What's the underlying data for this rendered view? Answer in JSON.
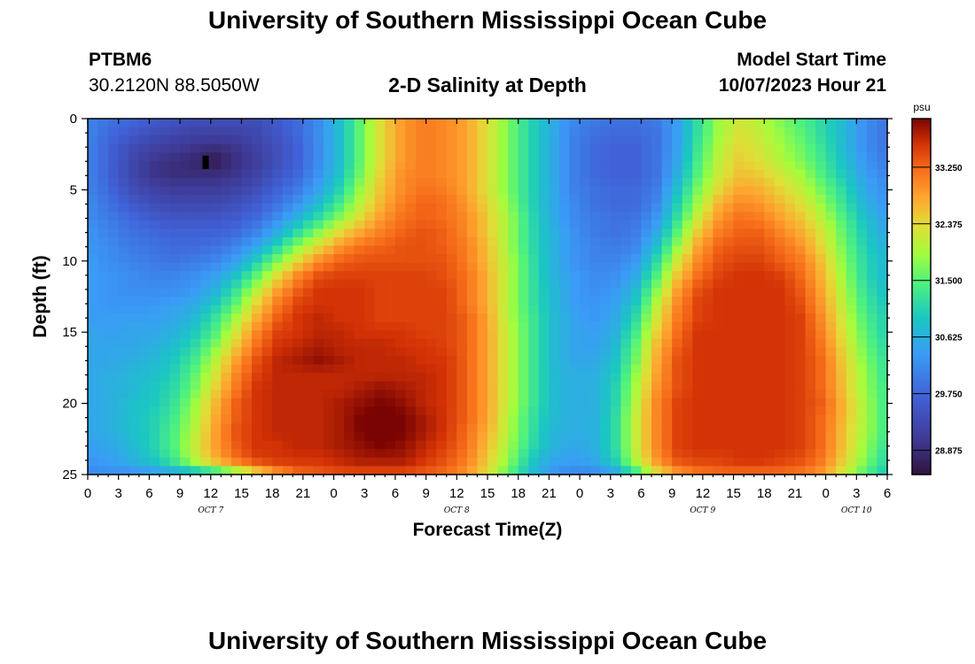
{
  "header": {
    "title": "University of Southern Mississippi Ocean Cube",
    "station_id": "PTBM6",
    "coordinates": "30.2120N  88.5050W",
    "chart_title": "2-D Salinity at Depth",
    "model_start_label": "Model Start Time",
    "model_start_value": "10/07/2023 Hour 21"
  },
  "footer": {
    "title": "University of Southern Mississippi Ocean Cube"
  },
  "chart_data": {
    "type": "heatmap",
    "title": "2-D Salinity at Depth",
    "xlabel": "Forecast Time(Z)",
    "ylabel": "Depth (ft)",
    "x_unit": "hours from 10/07/2023 00Z",
    "x_range": [
      0,
      78
    ],
    "y_range": [
      0,
      25
    ],
    "x_tick_labels": [
      "0",
      "3",
      "6",
      "9",
      "12",
      "15",
      "18",
      "21",
      "0",
      "3",
      "6",
      "9",
      "12",
      "15",
      "18",
      "21",
      "0",
      "3",
      "6",
      "9",
      "12",
      "15",
      "18",
      "21",
      "0",
      "3",
      "6"
    ],
    "day_labels": [
      {
        "label": "OCT 7",
        "hour": 12
      },
      {
        "label": "OCT 8",
        "hour": 36
      },
      {
        "label": "OCT 9",
        "hour": 60
      },
      {
        "label": "OCT 10",
        "hour": 75
      }
    ],
    "y_ticks": [
      0,
      5,
      10,
      15,
      20,
      25
    ],
    "colorbar": {
      "unit": "psu",
      "min": 28.5,
      "max": 34.0,
      "ticks": [
        "33.250",
        "32.375",
        "31.500",
        "30.625",
        "29.750",
        "28.875"
      ]
    },
    "rows": 26,
    "cols": 39,
    "values": [
      [
        30.1,
        29.9,
        29.8,
        29.6,
        29.5,
        29.4,
        29.4,
        29.4,
        29.4,
        29.6,
        29.8,
        30.2,
        30.8,
        31.6,
        32.4,
        32.9,
        33.1,
        33.0,
        32.8,
        32.3,
        31.7,
        31.1,
        30.6,
        30.2,
        30.0,
        29.9,
        29.9,
        30.0,
        30.4,
        31.2,
        31.9,
        32.2,
        32.0,
        31.7,
        31.4,
        31.1,
        30.7,
        30.2,
        29.9
      ],
      [
        30.1,
        29.8,
        29.6,
        29.4,
        29.3,
        29.2,
        29.2,
        29.2,
        29.3,
        29.5,
        29.8,
        30.2,
        30.8,
        31.6,
        32.4,
        32.9,
        33.1,
        33.0,
        32.8,
        32.3,
        31.7,
        31.1,
        30.6,
        30.1,
        29.9,
        29.8,
        29.8,
        29.9,
        30.4,
        31.2,
        31.9,
        32.3,
        32.1,
        31.8,
        31.5,
        31.1,
        30.7,
        30.2,
        29.9
      ],
      [
        30.1,
        29.7,
        29.4,
        29.2,
        29.1,
        29.0,
        28.9,
        29.0,
        29.2,
        29.4,
        29.7,
        30.2,
        30.8,
        31.6,
        32.4,
        32.9,
        33.1,
        33.0,
        32.8,
        32.3,
        31.7,
        31.1,
        30.6,
        30.1,
        29.8,
        29.7,
        29.7,
        29.9,
        30.4,
        31.3,
        32.0,
        32.4,
        32.2,
        31.9,
        31.6,
        31.2,
        30.7,
        30.2,
        29.9
      ],
      [
        30.1,
        29.7,
        29.3,
        29.0,
        28.9,
        28.8,
        28.6,
        28.9,
        29.1,
        29.4,
        29.7,
        30.2,
        30.8,
        31.6,
        32.4,
        32.9,
        33.1,
        33.0,
        32.8,
        32.3,
        31.7,
        31.1,
        30.6,
        30.1,
        29.8,
        29.7,
        29.7,
        29.9,
        30.5,
        31.4,
        32.1,
        32.5,
        32.3,
        32.0,
        31.7,
        31.3,
        30.8,
        30.3,
        30.0
      ],
      [
        30.1,
        29.7,
        29.3,
        29.0,
        28.9,
        28.9,
        28.9,
        29.0,
        29.2,
        29.5,
        29.8,
        30.3,
        30.9,
        31.7,
        32.5,
        33.0,
        33.1,
        33.0,
        32.8,
        32.3,
        31.7,
        31.1,
        30.6,
        30.1,
        29.8,
        29.7,
        29.7,
        29.9,
        30.6,
        31.5,
        32.2,
        32.6,
        32.5,
        32.2,
        31.9,
        31.4,
        30.9,
        30.4,
        30.1
      ],
      [
        30.1,
        29.8,
        29.4,
        29.2,
        29.1,
        29.1,
        29.1,
        29.2,
        29.4,
        29.7,
        30.0,
        30.5,
        31.1,
        31.9,
        32.6,
        33.0,
        33.2,
        33.1,
        32.8,
        32.3,
        31.7,
        31.1,
        30.6,
        30.1,
        29.9,
        29.8,
        29.8,
        30.0,
        30.8,
        31.7,
        32.4,
        32.8,
        32.7,
        32.4,
        32.1,
        31.6,
        31.1,
        30.5,
        30.2
      ],
      [
        30.2,
        29.9,
        29.6,
        29.4,
        29.3,
        29.3,
        29.3,
        29.4,
        29.6,
        29.9,
        30.3,
        30.8,
        31.4,
        32.1,
        32.7,
        33.1,
        33.3,
        33.2,
        32.9,
        32.4,
        31.8,
        31.1,
        30.6,
        30.2,
        29.9,
        29.8,
        29.8,
        30.1,
        31.0,
        31.9,
        32.7,
        33.0,
        32.9,
        32.6,
        32.3,
        31.8,
        31.2,
        30.6,
        30.3
      ],
      [
        30.2,
        30.0,
        29.8,
        29.6,
        29.5,
        29.5,
        29.5,
        29.6,
        29.8,
        30.2,
        30.7,
        31.2,
        31.8,
        32.4,
        32.9,
        33.2,
        33.3,
        33.2,
        33.0,
        32.5,
        31.9,
        31.2,
        30.6,
        30.2,
        30.0,
        29.9,
        29.9,
        30.3,
        31.2,
        32.2,
        32.9,
        33.2,
        33.1,
        32.8,
        32.5,
        32.0,
        31.4,
        30.8,
        30.4
      ],
      [
        30.3,
        30.1,
        29.9,
        29.8,
        29.7,
        29.7,
        29.7,
        29.8,
        30.1,
        30.6,
        31.2,
        31.8,
        32.4,
        32.8,
        33.1,
        33.3,
        33.4,
        33.3,
        33.0,
        32.5,
        31.9,
        31.2,
        30.7,
        30.3,
        30.0,
        29.9,
        30.0,
        30.5,
        31.5,
        32.5,
        33.1,
        33.3,
        33.3,
        33.0,
        32.7,
        32.2,
        31.5,
        30.9,
        30.5
      ],
      [
        30.3,
        30.2,
        30.0,
        29.9,
        29.8,
        29.8,
        29.9,
        30.1,
        30.5,
        31.1,
        31.8,
        32.4,
        32.9,
        33.2,
        33.3,
        33.4,
        33.4,
        33.3,
        33.1,
        32.6,
        31.9,
        31.2,
        30.7,
        30.3,
        30.1,
        30.0,
        30.1,
        30.8,
        31.8,
        32.8,
        33.3,
        33.4,
        33.4,
        33.2,
        32.9,
        32.3,
        31.6,
        31.0,
        30.6
      ],
      [
        30.4,
        30.2,
        30.1,
        30.0,
        29.9,
        30.0,
        30.1,
        30.4,
        31.0,
        31.7,
        32.4,
        33.0,
        33.3,
        33.4,
        33.4,
        33.4,
        33.4,
        33.4,
        33.1,
        32.6,
        32.0,
        31.3,
        30.7,
        30.3,
        30.1,
        30.1,
        30.3,
        31.1,
        32.2,
        33.0,
        33.4,
        33.5,
        33.5,
        33.3,
        33.1,
        32.5,
        31.7,
        31.1,
        30.7
      ],
      [
        30.4,
        30.3,
        30.2,
        30.1,
        30.1,
        30.2,
        30.4,
        30.8,
        31.5,
        32.3,
        33.0,
        33.4,
        33.5,
        33.5,
        33.5,
        33.5,
        33.5,
        33.4,
        33.2,
        32.7,
        32.0,
        31.3,
        30.7,
        30.4,
        30.2,
        30.2,
        30.5,
        31.4,
        32.5,
        33.2,
        33.5,
        33.6,
        33.6,
        33.5,
        33.2,
        32.6,
        31.8,
        31.1,
        30.7
      ],
      [
        30.4,
        30.3,
        30.2,
        30.2,
        30.2,
        30.3,
        30.6,
        31.2,
        32.0,
        32.8,
        33.3,
        33.6,
        33.6,
        33.6,
        33.5,
        33.5,
        33.5,
        33.5,
        33.2,
        32.7,
        32.0,
        31.3,
        30.8,
        30.4,
        30.2,
        30.3,
        30.7,
        31.7,
        32.8,
        33.4,
        33.6,
        33.6,
        33.6,
        33.6,
        33.3,
        32.7,
        31.9,
        31.2,
        30.8
      ],
      [
        30.4,
        30.3,
        30.3,
        30.3,
        30.4,
        30.5,
        30.9,
        31.5,
        32.4,
        33.1,
        33.5,
        33.6,
        33.6,
        33.6,
        33.5,
        33.5,
        33.5,
        33.5,
        33.2,
        32.7,
        32.0,
        31.3,
        30.8,
        30.4,
        30.3,
        30.4,
        30.9,
        32.0,
        33.0,
        33.5,
        33.6,
        33.6,
        33.6,
        33.6,
        33.4,
        32.8,
        32.0,
        31.3,
        30.9
      ],
      [
        30.4,
        30.4,
        30.4,
        30.4,
        30.5,
        30.7,
        31.2,
        31.9,
        32.7,
        33.3,
        33.6,
        33.7,
        33.6,
        33.6,
        33.5,
        33.5,
        33.5,
        33.5,
        33.3,
        32.8,
        32.0,
        31.4,
        30.8,
        30.5,
        30.3,
        30.5,
        31.1,
        32.2,
        33.1,
        33.5,
        33.6,
        33.6,
        33.6,
        33.6,
        33.5,
        32.9,
        32.1,
        31.4,
        31.0
      ],
      [
        30.5,
        30.4,
        30.5,
        30.5,
        30.6,
        30.9,
        31.4,
        32.2,
        33.0,
        33.5,
        33.6,
        33.7,
        33.7,
        33.6,
        33.6,
        33.6,
        33.5,
        33.5,
        33.3,
        32.8,
        32.1,
        31.4,
        30.8,
        30.5,
        30.4,
        30.6,
        31.3,
        32.4,
        33.2,
        33.6,
        33.6,
        33.6,
        33.6,
        33.6,
        33.5,
        33.0,
        32.2,
        31.5,
        31.0
      ],
      [
        30.5,
        30.5,
        30.5,
        30.6,
        30.8,
        31.1,
        31.7,
        32.5,
        33.2,
        33.6,
        33.7,
        33.8,
        33.7,
        33.7,
        33.7,
        33.6,
        33.6,
        33.5,
        33.3,
        32.8,
        32.1,
        31.4,
        30.8,
        30.5,
        30.4,
        30.7,
        31.5,
        32.6,
        33.3,
        33.6,
        33.6,
        33.6,
        33.6,
        33.6,
        33.5,
        33.1,
        32.3,
        31.6,
        31.1
      ],
      [
        30.5,
        30.5,
        30.6,
        30.7,
        30.9,
        31.3,
        32.0,
        32.8,
        33.4,
        33.7,
        33.8,
        33.9,
        33.8,
        33.7,
        33.7,
        33.7,
        33.6,
        33.6,
        33.3,
        32.8,
        32.1,
        31.4,
        30.8,
        30.5,
        30.5,
        30.8,
        31.6,
        32.7,
        33.4,
        33.6,
        33.6,
        33.6,
        33.6,
        33.6,
        33.5,
        33.2,
        32.4,
        31.7,
        31.2
      ],
      [
        30.5,
        30.6,
        30.7,
        30.8,
        31.0,
        31.5,
        32.2,
        33.0,
        33.5,
        33.7,
        33.7,
        33.7,
        33.7,
        33.7,
        33.7,
        33.7,
        33.7,
        33.6,
        33.3,
        32.8,
        32.1,
        31.4,
        30.8,
        30.6,
        30.6,
        30.9,
        31.8,
        32.8,
        33.4,
        33.6,
        33.6,
        33.6,
        33.6,
        33.6,
        33.5,
        33.2,
        32.5,
        31.8,
        31.2
      ],
      [
        30.5,
        30.6,
        30.7,
        30.9,
        31.1,
        31.6,
        32.4,
        33.1,
        33.6,
        33.7,
        33.7,
        33.7,
        33.7,
        33.8,
        33.9,
        33.8,
        33.7,
        33.6,
        33.3,
        32.8,
        32.1,
        31.4,
        30.8,
        30.6,
        30.6,
        31.0,
        31.9,
        32.9,
        33.4,
        33.6,
        33.6,
        33.6,
        33.6,
        33.6,
        33.5,
        33.2,
        32.5,
        31.8,
        31.3
      ],
      [
        30.5,
        30.6,
        30.8,
        30.9,
        31.2,
        31.8,
        32.6,
        33.3,
        33.6,
        33.7,
        33.7,
        33.7,
        33.8,
        33.9,
        34.0,
        33.9,
        33.7,
        33.6,
        33.3,
        32.8,
        32.1,
        31.4,
        30.8,
        30.6,
        30.6,
        31.0,
        32.0,
        33.0,
        33.5,
        33.6,
        33.6,
        33.6,
        33.6,
        33.6,
        33.5,
        33.3,
        32.6,
        31.9,
        31.3
      ],
      [
        30.5,
        30.6,
        30.8,
        31.0,
        31.3,
        31.9,
        32.7,
        33.3,
        33.6,
        33.7,
        33.7,
        33.7,
        33.8,
        34.0,
        34.1,
        34.0,
        33.8,
        33.6,
        33.3,
        32.8,
        32.0,
        31.3,
        30.8,
        30.6,
        30.6,
        31.1,
        32.1,
        33.0,
        33.5,
        33.6,
        33.6,
        33.6,
        33.6,
        33.6,
        33.5,
        33.2,
        32.6,
        31.9,
        31.3
      ],
      [
        30.5,
        30.6,
        30.8,
        31.0,
        31.4,
        32.0,
        32.8,
        33.4,
        33.6,
        33.7,
        33.7,
        33.7,
        33.8,
        34.0,
        34.1,
        34.0,
        33.8,
        33.6,
        33.2,
        32.7,
        32.0,
        31.3,
        30.7,
        30.6,
        30.6,
        31.1,
        32.1,
        33.0,
        33.5,
        33.6,
        33.6,
        33.6,
        33.6,
        33.6,
        33.5,
        33.2,
        32.5,
        31.9,
        31.3
      ],
      [
        30.4,
        30.5,
        30.7,
        31.0,
        31.4,
        32.1,
        32.8,
        33.3,
        33.6,
        33.6,
        33.7,
        33.7,
        33.8,
        33.9,
        34.0,
        33.9,
        33.7,
        33.5,
        33.2,
        32.6,
        31.9,
        31.2,
        30.7,
        30.5,
        30.6,
        31.1,
        32.1,
        33.0,
        33.5,
        33.6,
        33.6,
        33.6,
        33.6,
        33.6,
        33.5,
        33.2,
        32.5,
        31.8,
        31.2
      ],
      [
        30.3,
        30.4,
        30.6,
        30.9,
        31.3,
        32.0,
        32.7,
        33.2,
        33.5,
        33.6,
        33.6,
        33.6,
        33.7,
        33.8,
        33.8,
        33.8,
        33.6,
        33.4,
        33.1,
        32.5,
        31.8,
        31.0,
        30.5,
        30.4,
        30.5,
        31.0,
        32.0,
        32.9,
        33.4,
        33.5,
        33.5,
        33.6,
        33.6,
        33.5,
        33.4,
        33.1,
        32.4,
        31.7,
        31.1
      ],
      [
        30.1,
        30.2,
        30.2,
        30.3,
        30.4,
        30.6,
        30.9,
        31.5,
        32.2,
        32.8,
        33.2,
        33.3,
        33.4,
        33.4,
        33.4,
        33.4,
        33.3,
        33.2,
        32.9,
        32.3,
        31.5,
        30.8,
        30.3,
        30.1,
        30.1,
        30.4,
        31.1,
        32.2,
        32.8,
        33.1,
        33.2,
        33.2,
        33.2,
        33.2,
        33.1,
        32.8,
        32.1,
        31.4,
        30.9
      ]
    ]
  }
}
